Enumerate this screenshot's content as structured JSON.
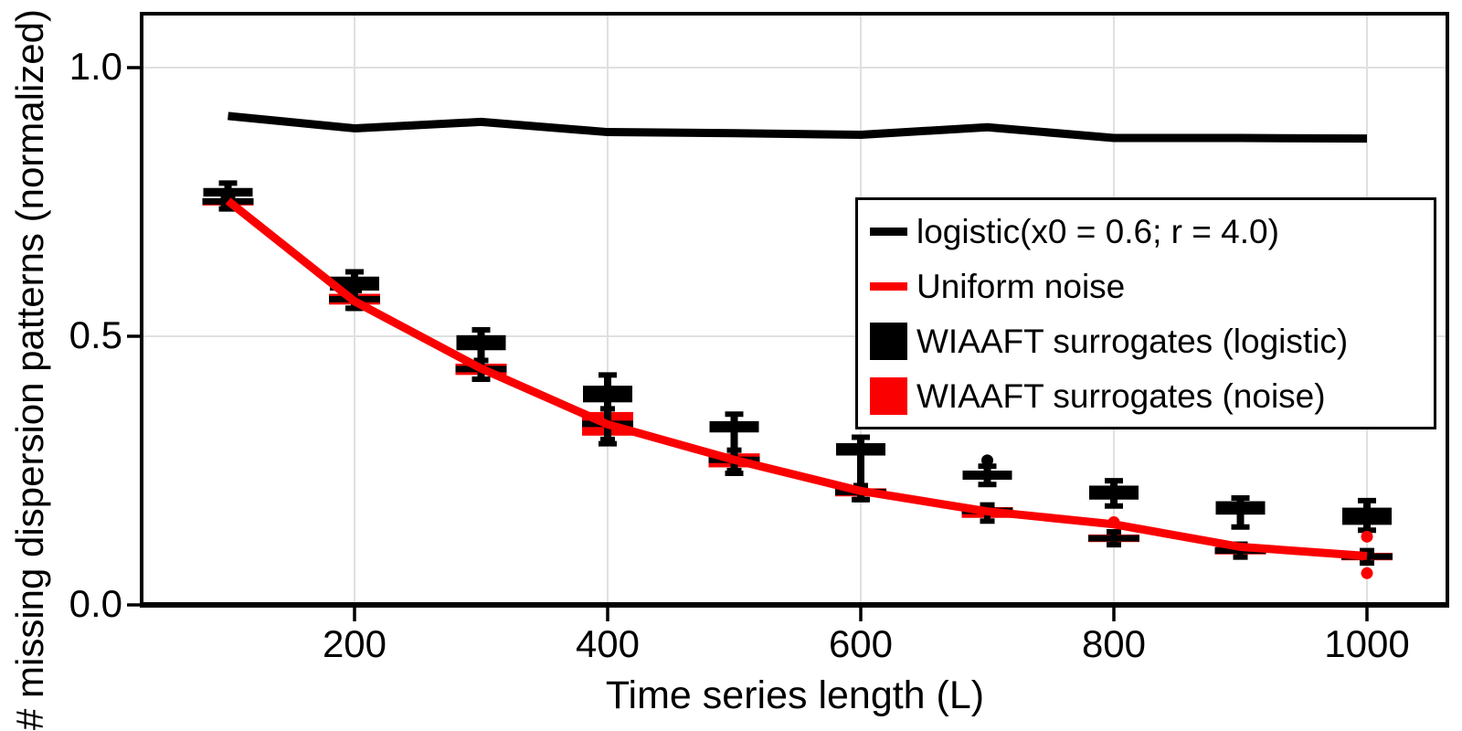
{
  "figure": {
    "xlabel": "Time series length (L)",
    "ylabel": "# missing dispersion patterns (normalized)",
    "xtick_labels": [
      "200",
      "400",
      "600",
      "800",
      "1000"
    ],
    "ytick_labels": [
      "0.0",
      "0.5",
      "1.0"
    ],
    "background": "#ffffff",
    "grid_color": "#e0e0e0",
    "axis_color": "#000000"
  },
  "legend": {
    "items": [
      {
        "label": "logistic(x0 = 0.6; r = 4.0)",
        "swatch": "line",
        "color": "#000000"
      },
      {
        "label": "Uniform noise",
        "swatch": "line",
        "color": "#fa0000"
      },
      {
        "label": "WIAAFT surrogates (logistic)",
        "swatch": "box",
        "color": "#000000"
      },
      {
        "label": "WIAAFT surrogates (noise)",
        "swatch": "box",
        "color": "#fa0000"
      }
    ]
  },
  "chart_data": {
    "type": "line+boxplot",
    "title": "",
    "xlabel": "Time series length (L)",
    "ylabel": "# missing dispersion patterns (normalized)",
    "x": [
      100,
      200,
      300,
      400,
      500,
      600,
      700,
      800,
      900,
      1000
    ],
    "xticks": [
      200,
      400,
      600,
      800,
      1000
    ],
    "yticks": [
      0.0,
      0.5,
      1.0
    ],
    "xlim": [
      32,
      1064
    ],
    "ylim": [
      0,
      1.1
    ],
    "grid": true,
    "legend_position": "upper right",
    "series": [
      {
        "name": "logistic(x0 = 0.6; r = 4.0)",
        "type": "line",
        "color": "#000000",
        "values": [
          0.91,
          0.887,
          0.899,
          0.88,
          0.878,
          0.875,
          0.889,
          0.869,
          0.869,
          0.868
        ]
      },
      {
        "name": "Uniform noise",
        "type": "line",
        "color": "#fa0000",
        "values": [
          0.752,
          0.565,
          0.44,
          0.336,
          0.27,
          0.212,
          0.174,
          0.15,
          0.108,
          0.091
        ]
      },
      {
        "name": "WIAAFT surrogates (logistic)",
        "type": "boxplot",
        "color": "#000000",
        "boxes": [
          {
            "x": 100,
            "q1": 0.76,
            "q3": 0.776,
            "lo": 0.737,
            "hi": 0.785,
            "fliers": []
          },
          {
            "x": 200,
            "q1": 0.585,
            "q3": 0.611,
            "lo": 0.552,
            "hi": 0.62,
            "fliers": []
          },
          {
            "x": 300,
            "q1": 0.474,
            "q3": 0.502,
            "lo": 0.42,
            "hi": 0.512,
            "fliers": []
          },
          {
            "x": 400,
            "q1": 0.377,
            "q3": 0.408,
            "lo": 0.3,
            "hi": 0.428,
            "fliers": []
          },
          {
            "x": 500,
            "q1": 0.321,
            "q3": 0.342,
            "lo": 0.245,
            "hi": 0.355,
            "fliers": []
          },
          {
            "x": 600,
            "q1": 0.278,
            "q3": 0.301,
            "lo": 0.196,
            "hi": 0.312,
            "fliers": []
          },
          {
            "x": 700,
            "q1": 0.233,
            "q3": 0.25,
            "lo": 0.224,
            "hi": 0.258,
            "fliers": [
              0.269
            ]
          },
          {
            "x": 800,
            "q1": 0.196,
            "q3": 0.222,
            "lo": 0.184,
            "hi": 0.231,
            "fliers": []
          },
          {
            "x": 900,
            "q1": 0.168,
            "q3": 0.193,
            "lo": 0.145,
            "hi": 0.199,
            "fliers": []
          },
          {
            "x": 1000,
            "q1": 0.149,
            "q3": 0.181,
            "lo": 0.139,
            "hi": 0.194,
            "fliers": []
          }
        ]
      },
      {
        "name": "WIAAFT surrogates (noise)",
        "type": "boxplot",
        "color": "#fa0000",
        "boxes": [
          {
            "x": 100,
            "q1": 0.745,
            "median": 0.751,
            "q3": 0.757,
            "lo": 0.74,
            "hi": 0.762,
            "fliers": []
          },
          {
            "x": 200,
            "q1": 0.559,
            "median": 0.569,
            "q3": 0.579,
            "lo": 0.552,
            "hi": 0.585,
            "fliers": []
          },
          {
            "x": 300,
            "q1": 0.428,
            "median": 0.439,
            "q3": 0.449,
            "lo": 0.42,
            "hi": 0.455,
            "fliers": []
          },
          {
            "x": 400,
            "q1": 0.315,
            "median": 0.337,
            "q3": 0.359,
            "lo": 0.308,
            "hi": 0.365,
            "fliers": []
          },
          {
            "x": 500,
            "q1": 0.256,
            "median": 0.27,
            "q3": 0.282,
            "lo": 0.25,
            "hi": 0.288,
            "fliers": []
          },
          {
            "x": 600,
            "q1": 0.202,
            "median": 0.21,
            "q3": 0.217,
            "lo": 0.196,
            "hi": 0.222,
            "fliers": []
          },
          {
            "x": 700,
            "q1": 0.162,
            "median": 0.175,
            "q3": 0.182,
            "lo": 0.156,
            "hi": 0.186,
            "fliers": []
          },
          {
            "x": 800,
            "q1": 0.117,
            "median": 0.124,
            "q3": 0.131,
            "lo": 0.112,
            "hi": 0.136,
            "fliers": [
              0.154
            ]
          },
          {
            "x": 900,
            "q1": 0.094,
            "median": 0.101,
            "q3": 0.108,
            "lo": 0.089,
            "hi": 0.113,
            "fliers": []
          },
          {
            "x": 1000,
            "q1": 0.083,
            "median": 0.09,
            "q3": 0.097,
            "lo": 0.078,
            "hi": 0.101,
            "fliers": [
              0.127,
              0.059
            ]
          }
        ]
      }
    ]
  }
}
